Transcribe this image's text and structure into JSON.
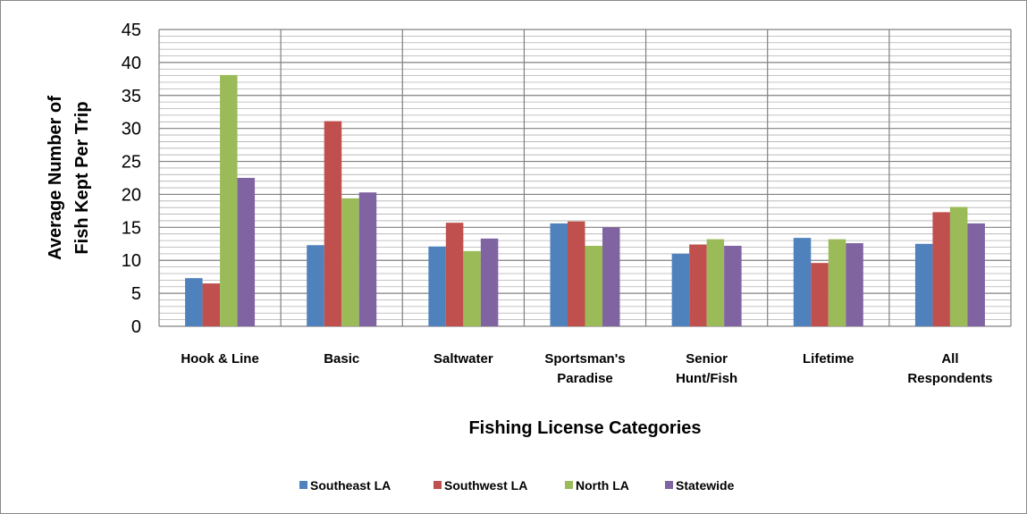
{
  "chart_data": {
    "type": "bar",
    "categories": [
      [
        "Hook & Line"
      ],
      [
        "Basic"
      ],
      [
        "Saltwater"
      ],
      [
        "Sportsman's",
        "Paradise"
      ],
      [
        "Senior",
        "Hunt/Fish"
      ],
      [
        "Lifetime"
      ],
      [
        "All",
        "Respondents"
      ]
    ],
    "series": [
      {
        "name": "Southeast LA",
        "color": "#4F81BD",
        "values": [
          7.3,
          12.3,
          12.1,
          15.6,
          11.0,
          13.4,
          12.5
        ]
      },
      {
        "name": "Southwest LA",
        "color": "#C0504D",
        "values": [
          6.5,
          31.1,
          15.7,
          15.9,
          12.4,
          9.6,
          17.3
        ]
      },
      {
        "name": "North LA",
        "color": "#9BBB59",
        "values": [
          38.1,
          19.4,
          11.4,
          12.2,
          13.2,
          13.2,
          18.1
        ]
      },
      {
        "name": "Statewide",
        "color": "#8064A2",
        "values": [
          22.5,
          20.3,
          13.3,
          15.0,
          12.2,
          12.6,
          15.6
        ]
      }
    ],
    "ylabel": [
      "Average Number of",
      "Fish Kept Per Trip"
    ],
    "xlabel": "Fishing License Categories",
    "ylim": [
      0,
      45
    ],
    "ytick_step": 5,
    "minor_grid_step": 1,
    "grid": true,
    "legend_position": "bottom"
  }
}
